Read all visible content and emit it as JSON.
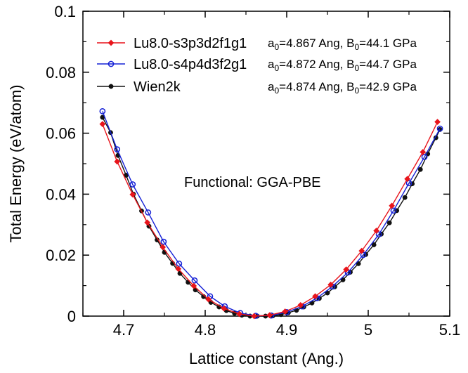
{
  "chart_data": {
    "type": "line",
    "xlabel": "Lattice constant (Ang.)",
    "ylabel": "Total Energy (eV/atom)",
    "xlim": [
      4.65,
      5.1
    ],
    "ylim": [
      0,
      0.1
    ],
    "xticks": [
      4.7,
      4.8,
      4.9,
      5.0,
      5.1
    ],
    "xtick_labels": [
      "4.7",
      "4.8",
      "4.9",
      "5",
      "5.1"
    ],
    "yticks": [
      0,
      0.02,
      0.04,
      0.06,
      0.08,
      0.1
    ],
    "ytick_labels": [
      "0",
      "0.02",
      "0.04",
      "0.06",
      "0.08",
      "0.1"
    ],
    "grid": false,
    "legend_position": "top-left",
    "annotation": "Functional: GGA-PBE",
    "series": [
      {
        "name": "Lu8.0-s3p3d2f1g1",
        "color": "#e8141b",
        "marker": "filled-diamond",
        "info": {
          "a_prefix": "a",
          "a_sub": "0",
          "a_value": "=4.867 Ang, ",
          "b_prefix": "B",
          "b_sub": "0",
          "b_value": "=44.1 GPa"
        },
        "x": [
          4.674,
          4.692,
          4.711,
          4.729,
          4.748,
          4.767,
          4.786,
          4.804,
          4.823,
          4.842,
          4.86,
          4.879,
          4.898,
          4.917,
          4.935,
          4.954,
          4.973,
          4.992,
          5.01,
          5.029,
          5.048,
          5.067,
          5.085
        ],
        "y": [
          0.063,
          0.0507,
          0.0399,
          0.0307,
          0.0226,
          0.0155,
          0.0099,
          0.0055,
          0.0025,
          0.0007,
          0.0,
          0.0003,
          0.0015,
          0.0036,
          0.0065,
          0.0103,
          0.0153,
          0.0214,
          0.028,
          0.0362,
          0.045,
          0.0538,
          0.0637
        ]
      },
      {
        "name": "Lu8.0-s4p4d3f2g1",
        "color": "#1420d6",
        "marker": "open-circle",
        "info": {
          "a_prefix": "a",
          "a_sub": "0",
          "a_value": "=4.872 Ang, ",
          "b_prefix": "B",
          "b_sub": "0",
          "b_value": "=44.7 GPa"
        },
        "x": [
          4.674,
          4.692,
          4.711,
          4.73,
          4.749,
          4.768,
          4.787,
          4.806,
          4.824,
          4.843,
          4.862,
          4.881,
          4.9,
          4.919,
          4.937,
          4.956,
          4.975,
          4.994,
          5.013,
          5.031,
          5.05,
          5.069,
          5.088
        ],
        "y": [
          0.0672,
          0.0547,
          0.0432,
          0.034,
          0.0244,
          0.0172,
          0.0117,
          0.0065,
          0.0032,
          0.001,
          0.0001,
          0.0002,
          0.0013,
          0.0032,
          0.0059,
          0.0097,
          0.0143,
          0.0201,
          0.0268,
          0.0346,
          0.0436,
          0.0522,
          0.0615
        ]
      },
      {
        "name": "Wien2k",
        "color": "#111111",
        "marker": "filled-circle",
        "info": {
          "a_prefix": "a",
          "a_sub": "0",
          "a_value": "=4.874 Ang, ",
          "b_prefix": "B",
          "b_sub": "0",
          "b_value": "=42.9 GPa"
        },
        "x": [
          4.674,
          4.684,
          4.693,
          4.703,
          4.712,
          4.722,
          4.731,
          4.741,
          4.75,
          4.76,
          4.769,
          4.779,
          4.788,
          4.798,
          4.807,
          4.817,
          4.826,
          4.836,
          4.845,
          4.855,
          4.864,
          4.874,
          4.883,
          4.893,
          4.902,
          4.912,
          4.921,
          4.931,
          4.94,
          4.95,
          4.959,
          4.969,
          4.978,
          4.988,
          4.997,
          5.007,
          5.016,
          5.026,
          5.035,
          5.045,
          5.054,
          5.064,
          5.073,
          5.083,
          5.088
        ],
        "y": [
          0.0652,
          0.0602,
          0.0527,
          0.0462,
          0.04,
          0.0345,
          0.0295,
          0.025,
          0.0209,
          0.0173,
          0.014,
          0.0111,
          0.0086,
          0.0064,
          0.0045,
          0.003,
          0.0018,
          0.0009,
          0.0003,
          0.0,
          0.0,
          0.0,
          0.0001,
          0.0005,
          0.0011,
          0.0019,
          0.003,
          0.0043,
          0.0058,
          0.0076,
          0.0096,
          0.0119,
          0.0144,
          0.0172,
          0.0202,
          0.0234,
          0.0269,
          0.0306,
          0.0346,
          0.0389,
          0.0434,
          0.0481,
          0.0532,
          0.0585,
          0.0612
        ]
      }
    ]
  }
}
